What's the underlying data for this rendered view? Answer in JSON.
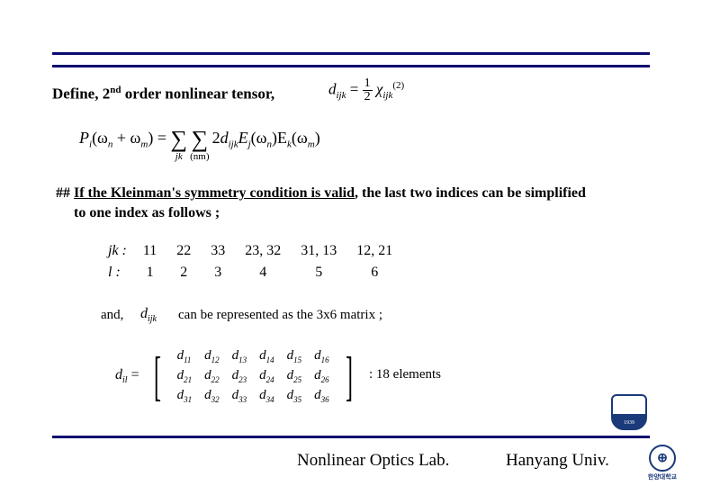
{
  "rule_color": "#0a0a6f",
  "heading": {
    "prefix": "Define, 2",
    "sup": "nd",
    "suffix": " order nonlinear tensor,"
  },
  "eq_tensor": {
    "lhs_var": "d",
    "lhs_sub": "ijk",
    "eq": "=",
    "frac_num": "1",
    "frac_den": "2",
    "chi": "χ",
    "chi_sub": "ijk",
    "chi_sup": "(2)"
  },
  "eq_polarization": {
    "P": "P",
    "P_sub": "i",
    "arg1": "(ω",
    "arg1_sub": "n",
    "plus": " + ω",
    "arg2_sub": "m",
    "close": ") = ",
    "sum1_label": "jk",
    "sum2_label": "(nm)",
    "two": "2",
    "d": "d",
    "d_sub": "ijk",
    "E1": "E",
    "E1_sub": "j",
    "E1_arg": "(ω",
    "E1_argsub": "n",
    "E2": ")E",
    "E2_sub": "k",
    "E2_arg": "(ω",
    "E2_argsub": "m",
    "end": ")"
  },
  "kleinman": {
    "hash": "## ",
    "underlined": "If the Kleinman's symmetry condition is valid",
    "rest": ", the last two indices can be simplified",
    "line2": "to one index as follows ;"
  },
  "index_map": {
    "row1_label": "jk :",
    "row1": [
      "11",
      "22",
      "33",
      "23, 32",
      "31, 13",
      "12, 21"
    ],
    "row2_label": "l  :",
    "row2": [
      "1",
      "2",
      "3",
      "4",
      "5",
      "6"
    ]
  },
  "and_text": "and,",
  "dijk_inline": {
    "d": "d",
    "sub": "ijk"
  },
  "canbe_text": "can be represented as the 3x6 matrix ;",
  "matrix": {
    "lhs_d": "d",
    "lhs_sub": "il",
    "eq": " =",
    "rows": [
      [
        "d",
        "11",
        "d",
        "12",
        "d",
        "13",
        "d",
        "14",
        "d",
        "15",
        "d",
        "16"
      ],
      [
        "d",
        "21",
        "d",
        "22",
        "d",
        "23",
        "d",
        "24",
        "d",
        "25",
        "d",
        "26"
      ],
      [
        "d",
        "31",
        "d",
        "32",
        "d",
        "33",
        "d",
        "34",
        "d",
        "35",
        "d",
        "36"
      ]
    ]
  },
  "elements_label": ": 18 elements",
  "footer": {
    "lab": "Nonlinear Optics Lab.",
    "univ": "Hanyang Univ.",
    "logo2_text": "한양대학교",
    "logo2_glyph": "⊕"
  }
}
